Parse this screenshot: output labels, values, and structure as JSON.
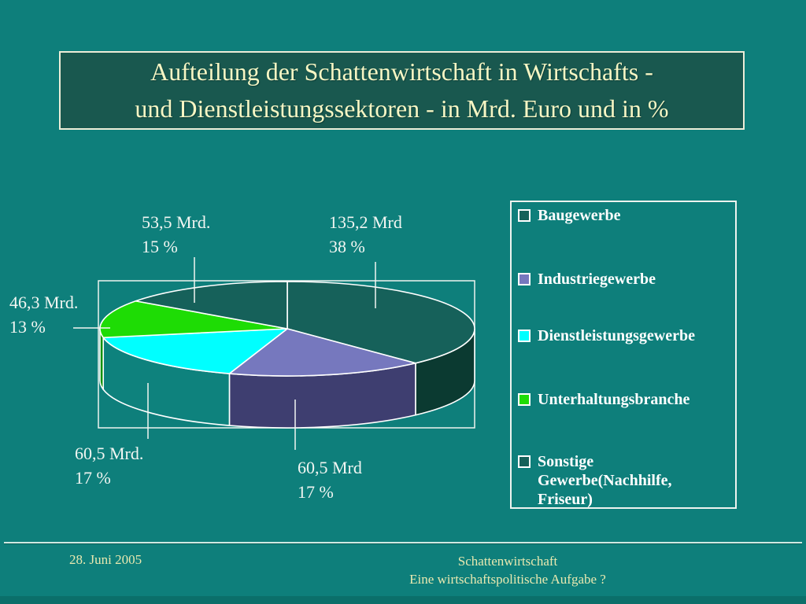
{
  "slide": {
    "title_line1": "Aufteilung der Schattenwirtschaft in Wirtschafts -",
    "title_line2": "und Dienstleistungssektoren - in Mrd. Euro und in %",
    "footer": {
      "date": "28. Juni 2005",
      "line1": "Schattenwirtschaft",
      "line2": "Eine wirtschaftspolitische Aufgabe ?"
    },
    "colors": {
      "background": "#0E7F7B",
      "title_box_fill": "#19584F",
      "title_text": "#F6F6C4",
      "legend_border": "#EDF3EF",
      "label_text": "#F2F6F2",
      "footer_text": "#E9E9B0"
    }
  },
  "chart_data": {
    "type": "pie",
    "is_3d": true,
    "title": "Aufteilung der Schattenwirtschaft in Wirtschafts - und Dienstleistungssektoren - in Mrd. Euro und in %",
    "unit": "Mrd. Euro",
    "legend_position": "right",
    "start_angle_clock": "12",
    "direction": "clockwise",
    "slices": [
      {
        "name": "Baugewerbe",
        "value_mrd": 135.2,
        "pct": 38,
        "value_label": "135,2 Mrd",
        "pct_label": "38 %",
        "color": "#16615A",
        "side_color": "#0B3A31"
      },
      {
        "name": "Industriegewerbe",
        "value_mrd": 60.5,
        "pct": 17,
        "value_label": "60,5 Mrd",
        "pct_label": "17 %",
        "color": "#7678BE",
        "side_color": "#3E3E70"
      },
      {
        "name": "Dienstleistungsgewerbe",
        "value_mrd": 60.5,
        "pct": 17,
        "value_label": "60,5 Mrd.",
        "pct_label": "17 %",
        "color": "#00FFFF",
        "side_color": "#0E827D"
      },
      {
        "name": "Unterhaltungsbranche",
        "value_mrd": 46.3,
        "pct": 13,
        "value_label": "46,3 Mrd.",
        "pct_label": "13 %",
        "color": "#1EDC05",
        "side_color": "#12930B"
      },
      {
        "name": "Sonstige Gewerbe(Nachhilfe, Friseur)",
        "value_mrd": 53.5,
        "pct": 15,
        "value_label": "53,5 Mrd.",
        "pct_label": "15 %",
        "color": "#16615A",
        "side_color": "#0B3A31"
      }
    ]
  }
}
